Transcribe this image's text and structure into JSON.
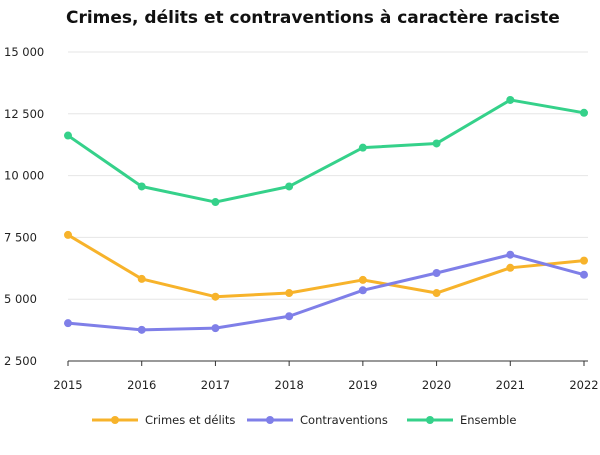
{
  "chart_data": {
    "type": "line",
    "title": "Crimes, délits et contraventions à caractère raciste",
    "xlabel": "",
    "ylabel": "",
    "x": [
      "2015",
      "2016",
      "2017",
      "2018",
      "2019",
      "2020",
      "2021",
      "2022"
    ],
    "ylim": [
      2500,
      15000
    ],
    "yticks": [
      2500,
      5000,
      7500,
      10000,
      12500,
      15000
    ],
    "ytick_labels": [
      "2 500",
      "5 000",
      "7 500",
      "10 000",
      "12 500",
      "15 000"
    ],
    "grid": "horizontal",
    "legend_position": "bottom-center",
    "series": [
      {
        "name": "Crimes et délits",
        "color": "#F7B32B",
        "values": [
          7600,
          5820,
          5100,
          5250,
          5780,
          5250,
          6270,
          6560
        ]
      },
      {
        "name": "Contraventions",
        "color": "#7F7FE8",
        "values": [
          4030,
          3760,
          3830,
          4310,
          5360,
          6060,
          6800,
          5990
        ]
      },
      {
        "name": "Ensemble",
        "color": "#35D18A",
        "values": [
          11620,
          9560,
          8930,
          9560,
          11130,
          11300,
          13060,
          12540
        ]
      }
    ]
  }
}
